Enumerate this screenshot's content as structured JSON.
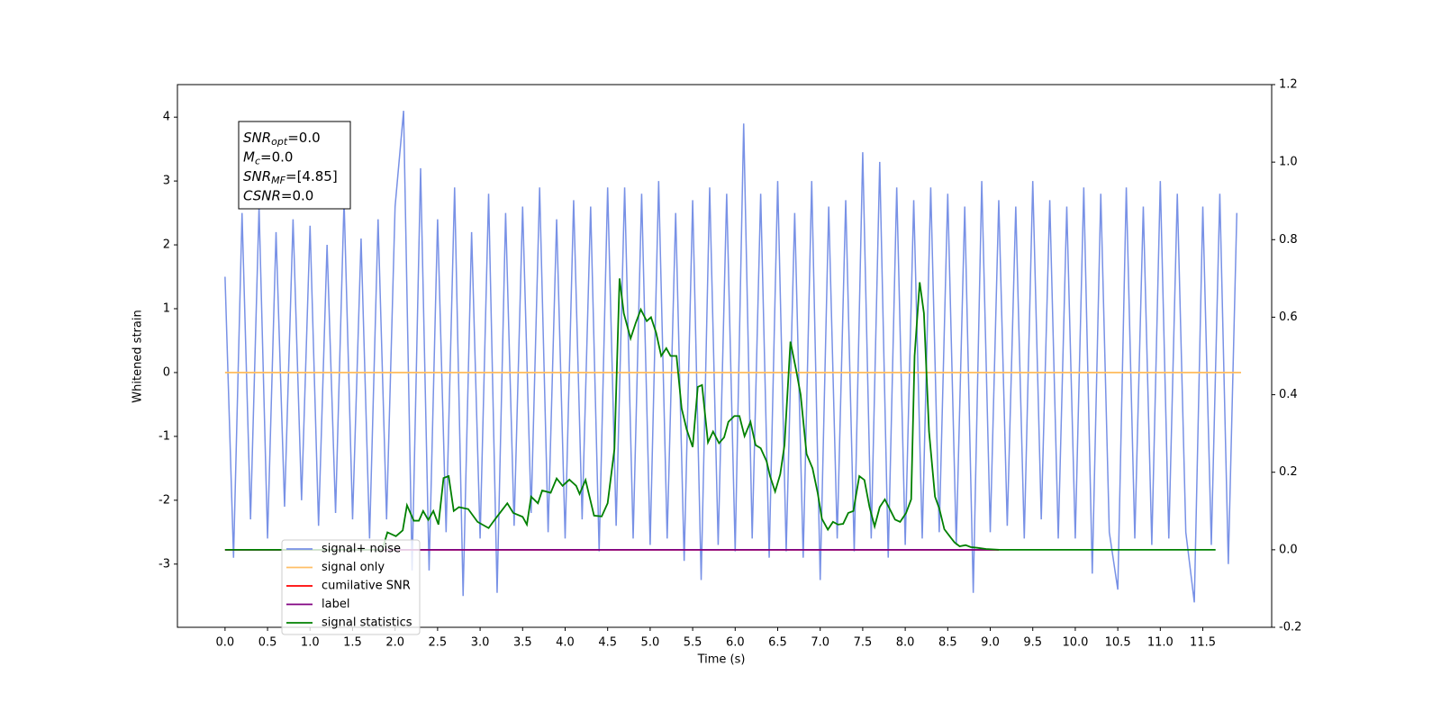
{
  "chart_data": {
    "type": "line",
    "xlabel": "Time (s)",
    "ylabel": "Whitened strain",
    "xlim": [
      -0.56,
      12.31
    ],
    "ylim": [
      -3.99,
      4.51
    ],
    "y2lim": [
      -0.2,
      1.2
    ],
    "xticks": [
      {
        "value": 0,
        "label": "0.0"
      },
      0.5,
      {
        "value": 1,
        "label": "1.0"
      },
      1.5,
      {
        "value": 2,
        "label": "2.0"
      },
      2.5,
      {
        "value": 3,
        "label": "3.0"
      },
      3.5,
      {
        "value": 4,
        "label": "4.0"
      },
      4.5,
      {
        "value": 5,
        "label": "5.0"
      },
      5.5,
      {
        "value": 6,
        "label": "6.0"
      },
      6.5,
      {
        "value": 7,
        "label": "7.0"
      },
      7.5,
      {
        "value": 8,
        "label": "8.0"
      },
      8.5,
      {
        "value": 9,
        "label": "9.0"
      },
      9.5,
      {
        "value": 10,
        "label": "10.0"
      },
      10.5,
      {
        "value": 11,
        "label": "11.0"
      },
      11.5
    ],
    "yticks": [
      -3,
      -2,
      -1,
      0,
      1,
      2,
      3,
      4
    ],
    "y2ticks": [
      -0.2,
      {
        "value": 0,
        "label": "0.0"
      },
      0.2,
      0.4,
      0.6,
      0.8,
      {
        "value": 1,
        "label": "1.0"
      },
      1.2
    ],
    "legend": "lower left",
    "annotations": [
      {
        "main": "SNR",
        "sub": "opt",
        "rest": "=0.0"
      },
      {
        "main": "M",
        "sub": "c",
        "rest": "=0.0"
      },
      {
        "main": "SNR",
        "sub": "MF",
        "rest": "=[4.85]"
      },
      {
        "main": "CSNR",
        "rest": "=0.0"
      }
    ],
    "series": [
      {
        "name": "signal+ noise",
        "color": "#7891e6",
        "x": [
          0,
          0.1,
          0.2,
          0.3,
          0.4,
          0.5,
          0.6,
          0.7,
          0.8,
          0.9,
          1,
          1.1,
          1.2,
          1.3,
          1.4,
          1.5,
          1.6,
          1.7,
          1.8,
          1.9,
          2,
          2.1,
          2.2,
          2.3,
          2.4,
          2.5,
          2.6,
          2.7,
          2.8,
          2.9,
          3,
          3.1,
          3.2,
          3.3,
          3.4,
          3.5,
          3.6,
          3.7,
          3.8,
          3.9,
          4,
          4.1,
          4.2,
          4.3,
          4.4,
          4.5,
          4.6,
          4.7,
          4.8,
          4.9,
          5,
          5.1,
          5.2,
          5.3,
          5.4,
          5.5,
          5.6,
          5.7,
          5.8,
          5.9,
          6,
          6.1,
          6.2,
          6.3,
          6.4,
          6.5,
          6.6,
          6.7,
          6.8,
          6.9,
          7,
          7.1,
          7.2,
          7.3,
          7.4,
          7.5,
          7.6,
          7.7,
          7.8,
          7.9,
          8,
          8.1,
          8.2,
          8.3,
          8.4,
          8.5,
          8.6,
          8.7,
          8.8,
          8.9,
          9,
          9.1,
          9.2,
          9.3,
          9.4,
          9.5,
          9.6,
          9.7,
          9.8,
          9.9,
          10,
          10.1,
          10.2,
          10.3,
          10.4,
          10.5,
          10.6,
          10.7,
          10.8,
          10.9,
          11,
          11.1,
          11.2,
          11.3,
          11.4,
          11.5,
          11.6,
          11.7,
          11.8,
          11.9
        ],
        "values": [
          1.5,
          -2.9,
          2.5,
          -2.3,
          2.6,
          -2.6,
          2.2,
          -2.1,
          2.4,
          -2.0,
          2.3,
          -2.4,
          2.0,
          -2.2,
          2.7,
          -2.3,
          2.1,
          -2.6,
          2.4,
          -2.3,
          2.6,
          4.1,
          -3.1,
          3.2,
          -3.1,
          2.4,
          -2.5,
          2.9,
          -3.5,
          2.2,
          -2.6,
          2.8,
          -3.45,
          2.5,
          -2.4,
          2.6,
          -2.2,
          2.9,
          -2.5,
          2.4,
          -2.6,
          2.7,
          -2.3,
          2.6,
          -2.8,
          2.9,
          -2.4,
          2.9,
          -2.6,
          2.8,
          -2.7,
          3.0,
          -2.6,
          2.5,
          -2.95,
          2.7,
          -3.25,
          2.9,
          -2.7,
          2.8,
          -2.8,
          3.9,
          -2.6,
          2.8,
          -2.9,
          3.0,
          -2.8,
          2.5,
          -2.9,
          3.0,
          -3.25,
          2.6,
          -2.6,
          2.7,
          -2.8,
          3.45,
          -2.6,
          3.3,
          -2.9,
          2.9,
          -2.7,
          2.7,
          -2.6,
          2.9,
          -2.5,
          2.8,
          -2.7,
          2.6,
          -3.45,
          3.0,
          -2.5,
          2.7,
          -2.4,
          2.6,
          -2.6,
          3.0,
          -2.3,
          2.7,
          -2.6,
          2.6,
          -2.6,
          2.9,
          -3.15,
          2.8,
          -2.5,
          -3.4,
          2.9,
          -2.6,
          2.6,
          -2.7,
          3.0,
          -2.6,
          2.8,
          -2.5,
          -3.6,
          2.6,
          -2.7,
          2.8,
          -3.0,
          2.5
        ]
      },
      {
        "name": "signal only",
        "color": "#ffbf66",
        "x": [
          0,
          11.95
        ],
        "values": [
          0,
          0
        ]
      },
      {
        "name": "cumilative SNR",
        "color": "#ff0000",
        "axis": "y2",
        "x": [
          0,
          9.1
        ],
        "values": [
          0,
          0
        ]
      },
      {
        "name": "label",
        "color": "#800080",
        "axis": "y2",
        "x": [
          0,
          9.1
        ],
        "values": [
          0,
          0
        ]
      },
      {
        "name": "signal statistics",
        "color": "#008000",
        "axis": "y2",
        "x": [
          0,
          1.85,
          1.91,
          2.01,
          2.09,
          2.14,
          2.22,
          2.28,
          2.33,
          2.39,
          2.45,
          2.51,
          2.57,
          2.63,
          2.69,
          2.75,
          2.86,
          2.97,
          3.1,
          3.18,
          3.32,
          3.39,
          3.5,
          3.55,
          3.6,
          3.68,
          3.73,
          3.83,
          3.9,
          3.97,
          4.05,
          4.13,
          4.17,
          4.24,
          4.34,
          4.43,
          4.5,
          4.58,
          4.64,
          4.69,
          4.77,
          4.83,
          4.89,
          4.96,
          5.01,
          5.07,
          5.13,
          5.19,
          5.24,
          5.31,
          5.37,
          5.43,
          5.5,
          5.56,
          5.61,
          5.68,
          5.74,
          5.81,
          5.87,
          5.92,
          5.99,
          6.05,
          6.11,
          6.18,
          6.24,
          6.3,
          6.37,
          6.41,
          6.47,
          6.53,
          6.58,
          6.65,
          6.72,
          6.77,
          6.84,
          6.91,
          6.97,
          7.02,
          7.09,
          7.15,
          7.21,
          7.27,
          7.33,
          7.39,
          7.46,
          7.52,
          7.58,
          7.64,
          7.7,
          7.76,
          7.83,
          7.88,
          7.94,
          8.01,
          8.07,
          8.11,
          8.17,
          8.22,
          8.28,
          8.35,
          8.4,
          8.46,
          8.53,
          8.58,
          8.64,
          8.71,
          8.77,
          8.85,
          8.95,
          9.11,
          11.65
        ],
        "values": [
          0,
          0,
          0.045,
          0.035,
          0.05,
          0.115,
          0.075,
          0.075,
          0.1,
          0.077,
          0.1,
          0.065,
          0.185,
          0.19,
          0.1,
          0.11,
          0.105,
          0.072,
          0.056,
          0.08,
          0.12,
          0.095,
          0.085,
          0.065,
          0.137,
          0.12,
          0.153,
          0.147,
          0.184,
          0.165,
          0.181,
          0.165,
          0.144,
          0.18,
          0.088,
          0.086,
          0.12,
          0.26,
          0.7,
          0.61,
          0.545,
          0.585,
          0.62,
          0.59,
          0.6,
          0.56,
          0.5,
          0.52,
          0.5,
          0.5,
          0.365,
          0.31,
          0.265,
          0.42,
          0.425,
          0.277,
          0.305,
          0.275,
          0.29,
          0.33,
          0.345,
          0.345,
          0.293,
          0.33,
          0.27,
          0.262,
          0.228,
          0.19,
          0.15,
          0.195,
          0.27,
          0.537,
          0.46,
          0.4,
          0.247,
          0.21,
          0.147,
          0.08,
          0.052,
          0.072,
          0.065,
          0.067,
          0.095,
          0.1,
          0.19,
          0.18,
          0.11,
          0.06,
          0.11,
          0.13,
          0.1,
          0.078,
          0.072,
          0.095,
          0.13,
          0.5,
          0.69,
          0.61,
          0.305,
          0.137,
          0.107,
          0.053,
          0.033,
          0.019,
          0.009,
          0.012,
          0.007,
          0.005,
          0.002,
          0,
          0
        ]
      }
    ]
  }
}
